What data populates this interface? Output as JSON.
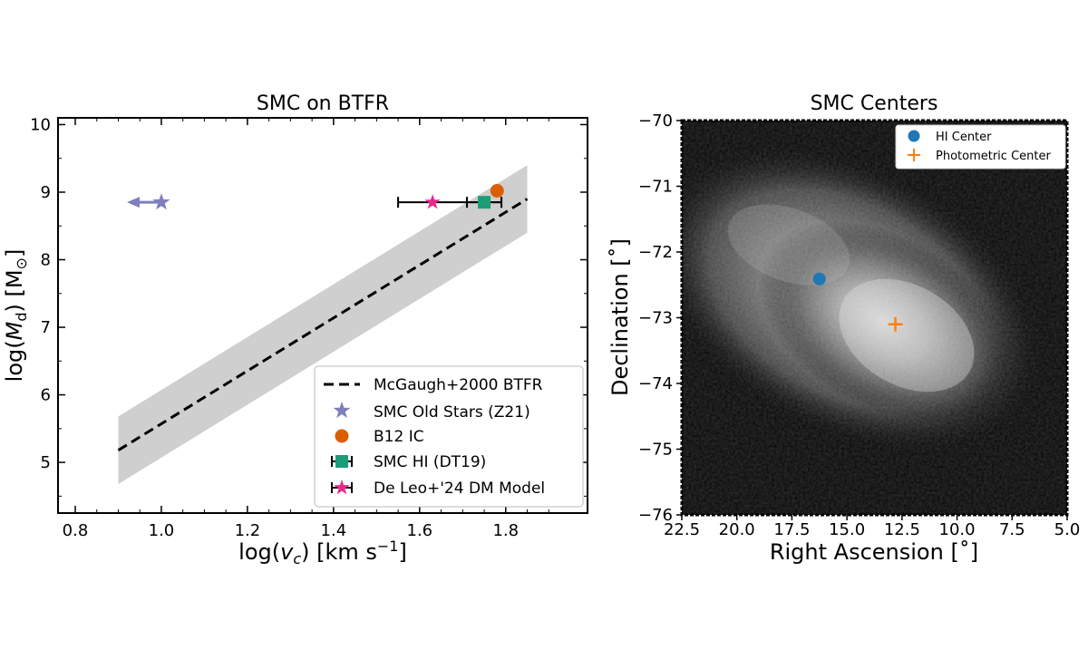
{
  "chart_data": [
    {
      "type": "scatter",
      "title": "SMC on BTFR",
      "xlabel": "log(v_c) [km s⁻¹]",
      "ylabel": "log(M_d) [M⊙]",
      "xlim": [
        0.76,
        1.99
      ],
      "ylim": [
        4.25,
        10.1
      ],
      "xticks": [
        "0.8",
        "1.0",
        "1.2",
        "1.4",
        "1.6",
        "1.8"
      ],
      "xtick_values": [
        0.8,
        1.0,
        1.2,
        1.4,
        1.6,
        1.8
      ],
      "yticks": [
        "5",
        "6",
        "7",
        "8",
        "9",
        "10"
      ],
      "ytick_values": [
        5,
        6,
        7,
        8,
        9,
        10
      ],
      "grid": false,
      "legend_position": "lower-right",
      "btfr_line": {
        "x": [
          0.9,
          1.85
        ],
        "y": [
          5.18,
          8.9
        ],
        "band_halfwidth": 0.5,
        "color": "#000000",
        "band_color": "#cfcfcf"
      },
      "series": [
        {
          "name": "McGaugh+2000 BTFR",
          "kind": "dashed-line",
          "color": "#000000"
        },
        {
          "name": "SMC Old Stars (Z21)",
          "kind": "star-upper-limit",
          "color": "#7f7fbf",
          "points": [
            {
              "x": 1.0,
              "y": 8.85
            }
          ],
          "arrow_to_x": 0.92
        },
        {
          "name": "B12 IC",
          "kind": "circle",
          "color": "#d95f02",
          "points": [
            {
              "x": 1.78,
              "y": 9.02
            }
          ]
        },
        {
          "name": "SMC HI (DT19)",
          "kind": "square-errorbar",
          "color": "#1b9e77",
          "points": [
            {
              "x": 1.75,
              "y": 8.85,
              "xerr_low": 0.04,
              "xerr_high": 0.04
            }
          ]
        },
        {
          "name": "De Leo+'24 DM Model",
          "kind": "star-errorbar",
          "color": "#e7298a",
          "points": [
            {
              "x": 1.63,
              "y": 8.85,
              "xerr_low": 0.08,
              "xerr_high": 0.16
            }
          ]
        }
      ]
    },
    {
      "type": "heatmap",
      "title": "SMC Centers",
      "xlabel": "Right Ascension [˚]",
      "ylabel": "Declination [˚]",
      "xlim": [
        22.5,
        5.0
      ],
      "ylim": [
        -76,
        -70
      ],
      "x_inverted": true,
      "xticks": [
        "22.5",
        "20.0",
        "17.5",
        "15.0",
        "12.5",
        "10.0",
        "7.5",
        "5.0"
      ],
      "xtick_values": [
        22.5,
        20.0,
        17.5,
        15.0,
        12.5,
        10.0,
        7.5,
        5.0
      ],
      "yticks": [
        "−70",
        "−71",
        "−72",
        "−73",
        "−74",
        "−75",
        "−76"
      ],
      "ytick_values": [
        -70,
        -71,
        -72,
        -73,
        -74,
        -75,
        -76
      ],
      "colormap": "grayscale",
      "legend_position": "top-right",
      "series": [
        {
          "name": "HI Center",
          "kind": "circle",
          "color": "#1f77b4",
          "points": [
            {
              "x": 16.25,
              "y": -72.41
            }
          ]
        },
        {
          "name": "Photometric Center",
          "kind": "plus",
          "color": "#ff7f0e",
          "points": [
            {
              "x": 12.8,
              "y": -73.1
            }
          ]
        }
      ],
      "density_peak": {
        "x": 13.0,
        "y": -73.0
      }
    }
  ]
}
